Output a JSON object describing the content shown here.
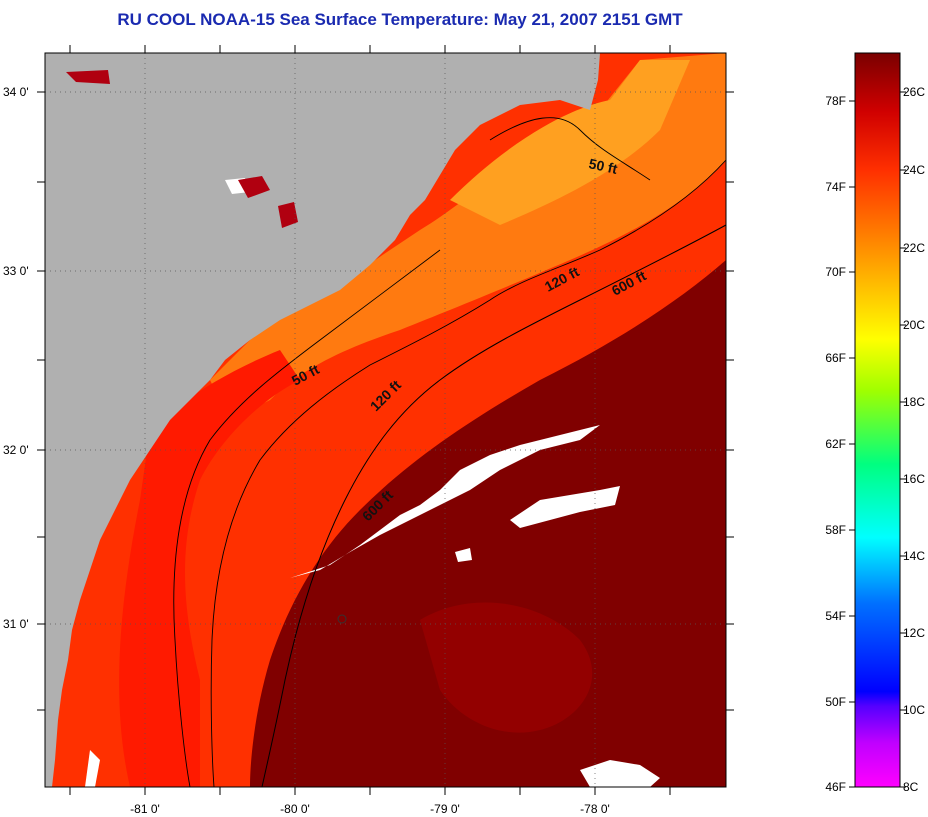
{
  "title": "RU COOL  NOAA-15  Sea Surface Temperature:  May 21, 2007 2151 GMT",
  "map": {
    "lat_ticks": [
      "34 0'",
      "33 0'",
      "32 0'",
      "31 0'"
    ],
    "lon_ticks": [
      "-81 0'",
      "-80 0'",
      "-79 0'",
      "-78 0'"
    ],
    "colors": {
      "land": "#b0b0b0",
      "cloud": "#ffffff",
      "warm_max": "#7a0000",
      "warm": "#ff2a00",
      "mid": "#ff6a00",
      "cool": "#ff9a10"
    },
    "contours": [
      {
        "label": "50 ft"
      },
      {
        "label": "50 ft"
      },
      {
        "label": "120 ft"
      },
      {
        "label": "120 ft"
      },
      {
        "label": "600 ft"
      },
      {
        "label": "600 ft"
      }
    ]
  },
  "colorbar": {
    "fahrenheit_labels": [
      "78F",
      "74F",
      "70F",
      "66F",
      "62F",
      "58F",
      "54F",
      "50F",
      "46F"
    ],
    "celsius_labels": [
      "26C",
      "24C",
      "22C",
      "20C",
      "18C",
      "16C",
      "14C",
      "12C",
      "10C",
      "8C"
    ],
    "range_f": [
      46,
      80
    ],
    "range_c": [
      8,
      27
    ]
  }
}
